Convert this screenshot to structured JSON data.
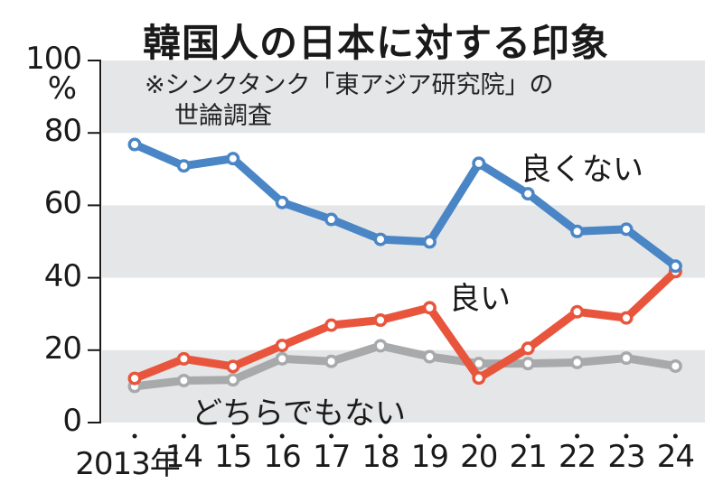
{
  "chart_data": {
    "type": "line",
    "title": "韓国人の日本に対する印象",
    "subtitle": "※シンクタンク「東アジア研究院」の世論調査",
    "subtitle_lines": [
      "※シンクタンク「東アジア研究院」の",
      "世論調査"
    ],
    "xlabel": "",
    "ylabel": "%",
    "ylim": [
      0,
      100
    ],
    "yticks": [
      0,
      20,
      40,
      60,
      80,
      100
    ],
    "ytick_labels": [
      "0",
      "20",
      "40",
      "60",
      "80",
      "100"
    ],
    "y_unit_label": "%",
    "x": [
      "2013",
      "2014",
      "2015",
      "2016",
      "2017",
      "2018",
      "2019",
      "2020",
      "2021",
      "2022",
      "2023",
      "2024"
    ],
    "xtick_labels": [
      "2013年",
      "14",
      "15",
      "16",
      "17",
      "18",
      "19",
      "20",
      "21",
      "22",
      "23",
      "24"
    ],
    "grid": "alternating horizontal bands (gray at 0-20, 40-60, 80-100)",
    "legend": "inline labels",
    "series": [
      {
        "name": "良くない",
        "color": "#4a86c5",
        "values": [
          76.8,
          70.9,
          72.9,
          60.8,
          56.1,
          50.6,
          49.9,
          71.6,
          63.2,
          52.8,
          53.4,
          43.2
        ]
      },
      {
        "name": "良い",
        "color": "#e8553c",
        "values": [
          12.2,
          17.6,
          15.5,
          21.3,
          26.9,
          28.3,
          31.7,
          12.3,
          20.5,
          30.6,
          28.9,
          41.7
        ]
      },
      {
        "name": "どちらでもない",
        "color": "#a8a9ab",
        "values": [
          10.0,
          11.6,
          11.8,
          17.6,
          16.9,
          21.2,
          18.2,
          16.3,
          16.3,
          16.6,
          17.8,
          15.6
        ]
      }
    ]
  },
  "labels": {
    "title": "韓国人の日本に対する印象",
    "note_line1": "※シンクタンク「東アジア研究院」の",
    "note_line2": "世論調査",
    "series_bad": "良くない",
    "series_good": "良い",
    "series_neutral": "どちらでもない"
  }
}
